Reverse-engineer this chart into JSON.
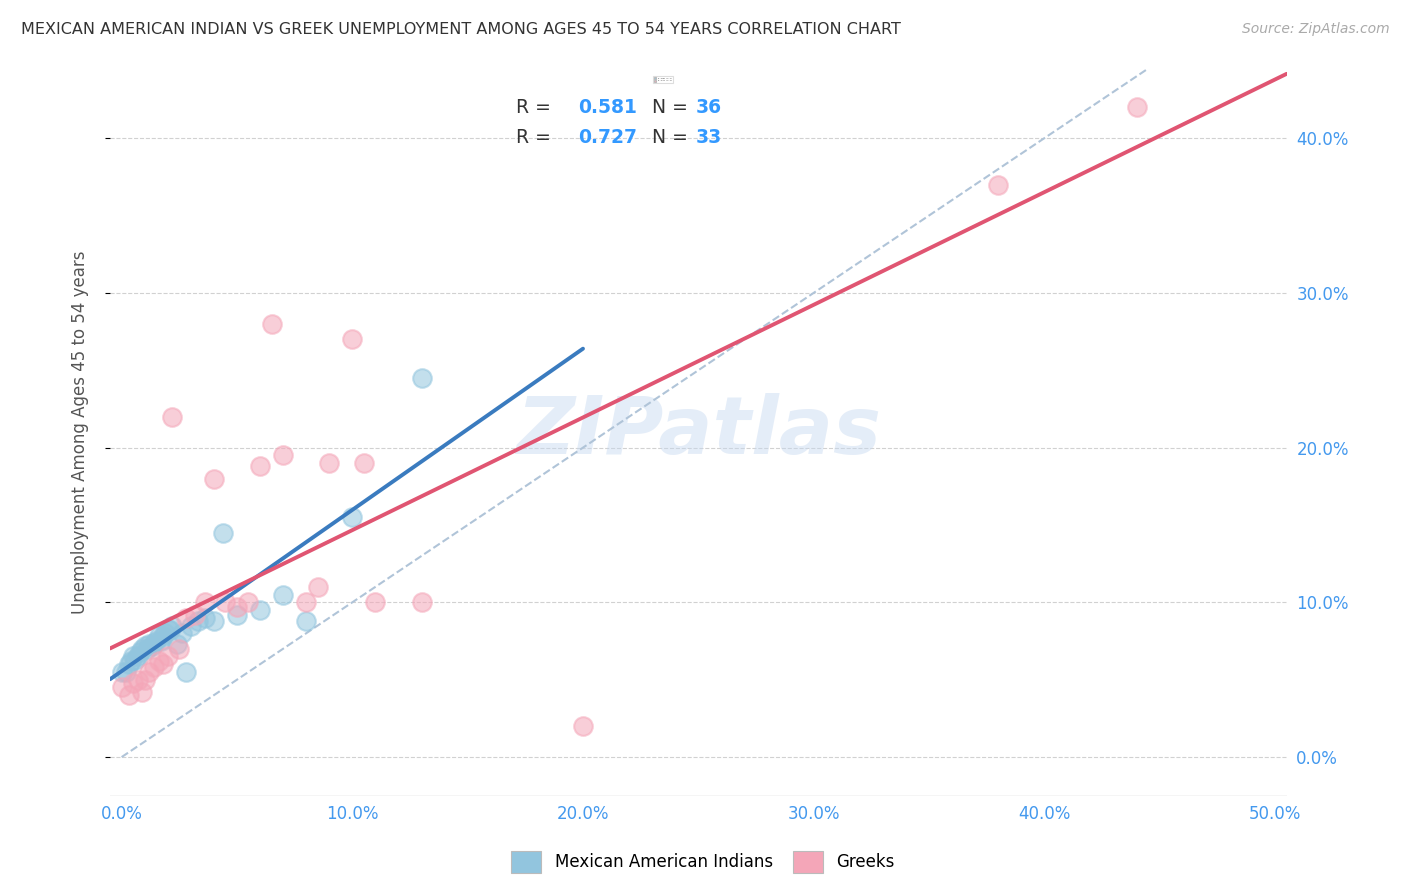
{
  "title": "MEXICAN AMERICAN INDIAN VS GREEK UNEMPLOYMENT AMONG AGES 45 TO 54 YEARS CORRELATION CHART",
  "source": "Source: ZipAtlas.com",
  "ylabel": "Unemployment Among Ages 45 to 54 years",
  "xlim": [
    -0.005,
    0.505
  ],
  "ylim": [
    -0.025,
    0.445
  ],
  "xticks": [
    0.0,
    0.1,
    0.2,
    0.3,
    0.4,
    0.5
  ],
  "yticks": [
    0.0,
    0.1,
    0.2,
    0.3,
    0.4
  ],
  "xticklabels": [
    "0.0%",
    "10.0%",
    "20.0%",
    "30.0%",
    "40.0%",
    "50.0%"
  ],
  "yticklabels_right": [
    "0.0%",
    "10.0%",
    "20.0%",
    "30.0%",
    "40.0%"
  ],
  "blue_color": "#92c5de",
  "pink_color": "#f4a6b8",
  "blue_line_color": "#3a7bbf",
  "pink_line_color": "#e05572",
  "dashed_line_color": "#b0c4d8",
  "watermark": "ZIPatlas",
  "blue_scatter_x": [
    0.0,
    0.002,
    0.003,
    0.004,
    0.005,
    0.006,
    0.007,
    0.008,
    0.009,
    0.01,
    0.011,
    0.012,
    0.013,
    0.014,
    0.015,
    0.016,
    0.017,
    0.018,
    0.019,
    0.02,
    0.021,
    0.022,
    0.024,
    0.026,
    0.028,
    0.03,
    0.033,
    0.036,
    0.04,
    0.044,
    0.05,
    0.06,
    0.07,
    0.08,
    0.1,
    0.13
  ],
  "blue_scatter_y": [
    0.055,
    0.055,
    0.06,
    0.062,
    0.065,
    0.063,
    0.065,
    0.068,
    0.07,
    0.072,
    0.07,
    0.073,
    0.072,
    0.074,
    0.075,
    0.078,
    0.075,
    0.078,
    0.08,
    0.083,
    0.082,
    0.085,
    0.073,
    0.08,
    0.055,
    0.085,
    0.088,
    0.09,
    0.088,
    0.145,
    0.092,
    0.095,
    0.105,
    0.088,
    0.155,
    0.245
  ],
  "pink_scatter_x": [
    0.0,
    0.003,
    0.005,
    0.007,
    0.009,
    0.01,
    0.012,
    0.014,
    0.016,
    0.018,
    0.02,
    0.022,
    0.025,
    0.028,
    0.032,
    0.036,
    0.04,
    0.045,
    0.05,
    0.055,
    0.06,
    0.065,
    0.07,
    0.08,
    0.085,
    0.09,
    0.1,
    0.105,
    0.11,
    0.13,
    0.2,
    0.38,
    0.44
  ],
  "pink_scatter_y": [
    0.045,
    0.04,
    0.048,
    0.05,
    0.042,
    0.05,
    0.055,
    0.058,
    0.062,
    0.06,
    0.065,
    0.22,
    0.07,
    0.09,
    0.092,
    0.1,
    0.18,
    0.1,
    0.097,
    0.1,
    0.188,
    0.28,
    0.195,
    0.1,
    0.11,
    0.19,
    0.27,
    0.19,
    0.1,
    0.1,
    0.02,
    0.37,
    0.42
  ],
  "blue_line_x_start": -0.005,
  "blue_line_x_end": 0.2,
  "pink_line_x_start": -0.005,
  "pink_line_x_end": 0.505
}
